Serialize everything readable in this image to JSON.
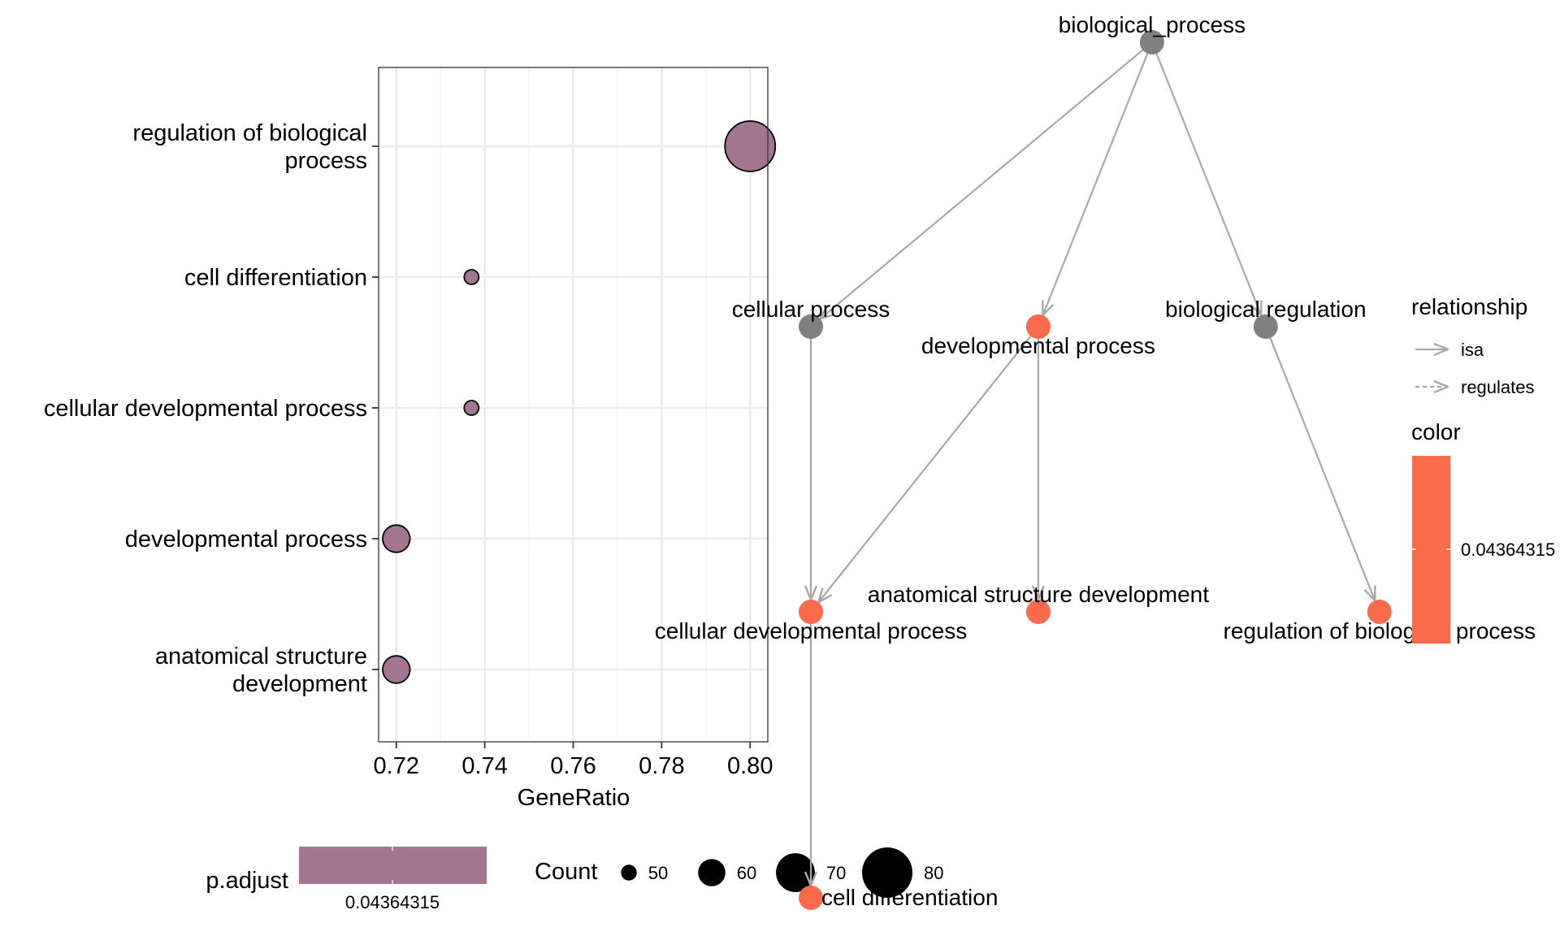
{
  "chart_data": [
    {
      "type": "scatter",
      "xlabel": "GeneRatio",
      "xlim": [
        0.716,
        0.804
      ],
      "x_ticks": [
        0.72,
        0.74,
        0.76,
        0.78,
        0.8
      ],
      "x_tick_labels": [
        "0.72",
        "0.74",
        "0.76",
        "0.78",
        "0.80"
      ],
      "categories": [
        {
          "lines": [
            "regulation of biological",
            "process"
          ]
        },
        {
          "lines": [
            "cell differentiation"
          ]
        },
        {
          "lines": [
            "cellular developmental process"
          ]
        },
        {
          "lines": [
            "developmental process"
          ]
        },
        {
          "lines": [
            "anatomical structure",
            "development"
          ]
        }
      ],
      "points": [
        {
          "x": 0.8,
          "count": 80
        },
        {
          "x": 0.737,
          "count": 49
        },
        {
          "x": 0.737,
          "count": 49
        },
        {
          "x": 0.72,
          "count": 60
        },
        {
          "x": 0.72,
          "count": 60
        }
      ],
      "point_color": "#a37591",
      "legend": {
        "padjust_title": "p.adjust",
        "padjust_value": "0.04364315",
        "padjust_color": "#a37591",
        "count_title": "Count",
        "count_values": [
          50,
          60,
          70,
          80
        ],
        "count_labels": [
          "50",
          "60",
          "70",
          "80"
        ]
      }
    },
    {
      "type": "network",
      "nodes": [
        {
          "id": "bp",
          "label": "biological_process",
          "col": 1.35,
          "row": 0,
          "significant": false,
          "label_pos": "above"
        },
        {
          "id": "cp",
          "label": "cellular process",
          "col": 0,
          "row": 1,
          "significant": false,
          "label_pos": "above"
        },
        {
          "id": "dp",
          "label": "developmental process",
          "col": 0.9,
          "row": 1,
          "significant": true,
          "label_pos": "below"
        },
        {
          "id": "br",
          "label": "biological regulation",
          "col": 1.8,
          "row": 1,
          "significant": false,
          "label_pos": "above"
        },
        {
          "id": "cdp",
          "label": "cellular developmental process",
          "col": 0,
          "row": 2,
          "significant": true,
          "label_pos": "below"
        },
        {
          "id": "asd",
          "label": "anatomical structure development",
          "col": 0.9,
          "row": 2,
          "significant": true,
          "label_pos": "above"
        },
        {
          "id": "rbp",
          "label": "regulation of biological process",
          "col": 2.25,
          "row": 2,
          "significant": true,
          "label_pos": "below"
        },
        {
          "id": "cd",
          "label": "cell differentiation",
          "col": 0,
          "row": 3,
          "significant": true,
          "label_pos": "right"
        }
      ],
      "edges": [
        {
          "from": "bp",
          "to": "cp",
          "relationship": "isa"
        },
        {
          "from": "bp",
          "to": "dp",
          "relationship": "isa"
        },
        {
          "from": "bp",
          "to": "br",
          "relationship": "isa"
        },
        {
          "from": "cp",
          "to": "cdp",
          "relationship": "isa"
        },
        {
          "from": "dp",
          "to": "cdp",
          "relationship": "isa"
        },
        {
          "from": "dp",
          "to": "asd",
          "relationship": "isa"
        },
        {
          "from": "br",
          "to": "rbp",
          "relationship": "isa"
        },
        {
          "from": "cdp",
          "to": "cd",
          "relationship": "isa"
        }
      ],
      "colors": {
        "significant": "#fb6a4a",
        "other": "#808080",
        "edge": "#a8a8a8"
      },
      "legend": {
        "relationship_title": "relationship",
        "relationship_items": [
          "isa",
          "regulates"
        ],
        "color_title": "color",
        "color_value": "0.04364315"
      }
    }
  ]
}
